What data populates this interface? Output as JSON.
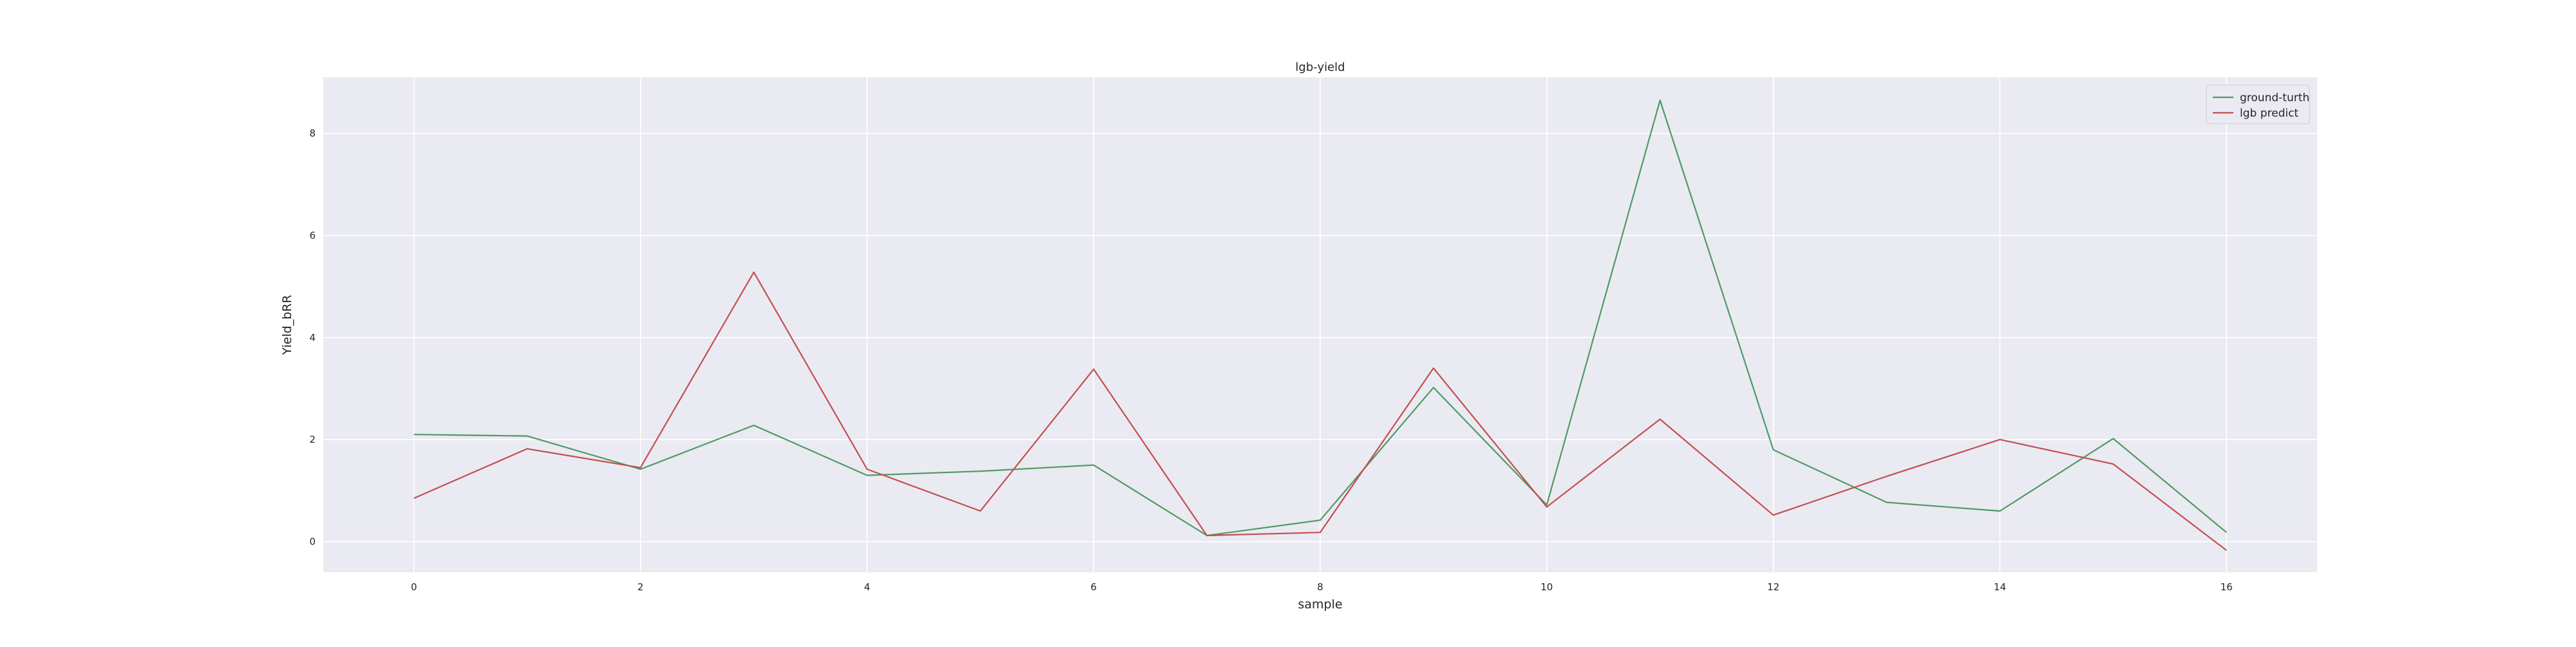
{
  "chart_data": {
    "type": "line",
    "title": "lgb-yield",
    "xlabel": "sample",
    "ylabel": "Yield_bRR",
    "x": [
      0,
      1,
      2,
      3,
      4,
      5,
      6,
      7,
      8,
      9,
      10,
      11,
      12,
      13,
      14,
      15,
      16
    ],
    "series": [
      {
        "name": "ground-turth",
        "color": "#4f9a63",
        "values": [
          2.1,
          2.07,
          1.42,
          2.28,
          1.3,
          1.38,
          1.5,
          0.12,
          0.42,
          3.02,
          0.72,
          8.65,
          1.8,
          0.77,
          0.6,
          2.02,
          0.18
        ]
      },
      {
        "name": "lgb predict",
        "color": "#c44e52",
        "values": [
          0.85,
          1.82,
          1.45,
          5.28,
          1.42,
          0.6,
          3.38,
          0.12,
          0.18,
          3.4,
          0.68,
          2.4,
          0.52,
          1.28,
          2.0,
          1.52,
          -0.17
        ]
      }
    ],
    "xlim": [
      -0.8,
      16.8
    ],
    "ylim": [
      -0.6,
      9.1
    ],
    "xticks": [
      "0",
      "2",
      "4",
      "6",
      "8",
      "10",
      "12",
      "14",
      "16"
    ],
    "yticks": [
      "0",
      "2",
      "4",
      "6",
      "8"
    ],
    "grid": true,
    "legend_position": "top-right",
    "background_color": "#eaeaf2",
    "grid_color": "#ffffff"
  }
}
